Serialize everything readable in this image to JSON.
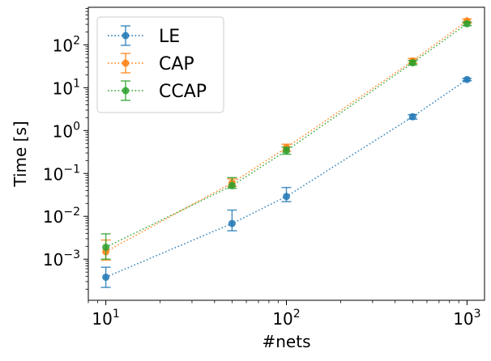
{
  "chart_data": {
    "type": "line",
    "xlabel": "#nets",
    "ylabel": "Time [s]",
    "xscale": "log",
    "yscale": "log",
    "xlim": [
      8,
      1250
    ],
    "ylim": [
      0.00011,
      750
    ],
    "grid": false,
    "legend_position": "top-left",
    "x": [
      10,
      50,
      100,
      500,
      1000
    ],
    "xticks": [
      {
        "value": 10,
        "base": "10",
        "exp": "1"
      },
      {
        "value": 100,
        "base": "10",
        "exp": "2"
      },
      {
        "value": 1000,
        "base": "10",
        "exp": "3"
      }
    ],
    "yticks": [
      {
        "value": 0.001,
        "base": "10",
        "exp": "−3"
      },
      {
        "value": 0.01,
        "base": "10",
        "exp": "−2"
      },
      {
        "value": 0.1,
        "base": "10",
        "exp": "−1"
      },
      {
        "value": 1,
        "base": "10",
        "exp": "0"
      },
      {
        "value": 10,
        "base": "10",
        "exp": "1"
      },
      {
        "value": 100,
        "base": "10",
        "exp": "2"
      }
    ],
    "series": [
      {
        "name": "LE",
        "color": "#1f77b4",
        "values": [
          0.00038,
          0.0068,
          0.029,
          2.1,
          15.5
        ],
        "err_low": [
          0.00022,
          0.0046,
          0.022,
          1.85,
          14.5
        ],
        "err_high": [
          0.00065,
          0.014,
          0.047,
          2.35,
          16.5
        ]
      },
      {
        "name": "CAP",
        "color": "#ff7f0e",
        "values": [
          0.0015,
          0.06,
          0.4,
          42,
          360
        ],
        "err_low": [
          0.00095,
          0.05,
          0.33,
          37,
          320
        ],
        "err_high": [
          0.0028,
          0.075,
          0.48,
          48,
          400
        ]
      },
      {
        "name": "CCAP",
        "color": "#2ca02c",
        "values": [
          0.0019,
          0.052,
          0.34,
          38,
          310
        ],
        "err_low": [
          0.001,
          0.045,
          0.28,
          34,
          280
        ],
        "err_high": [
          0.0039,
          0.08,
          0.41,
          43,
          340
        ]
      }
    ]
  }
}
